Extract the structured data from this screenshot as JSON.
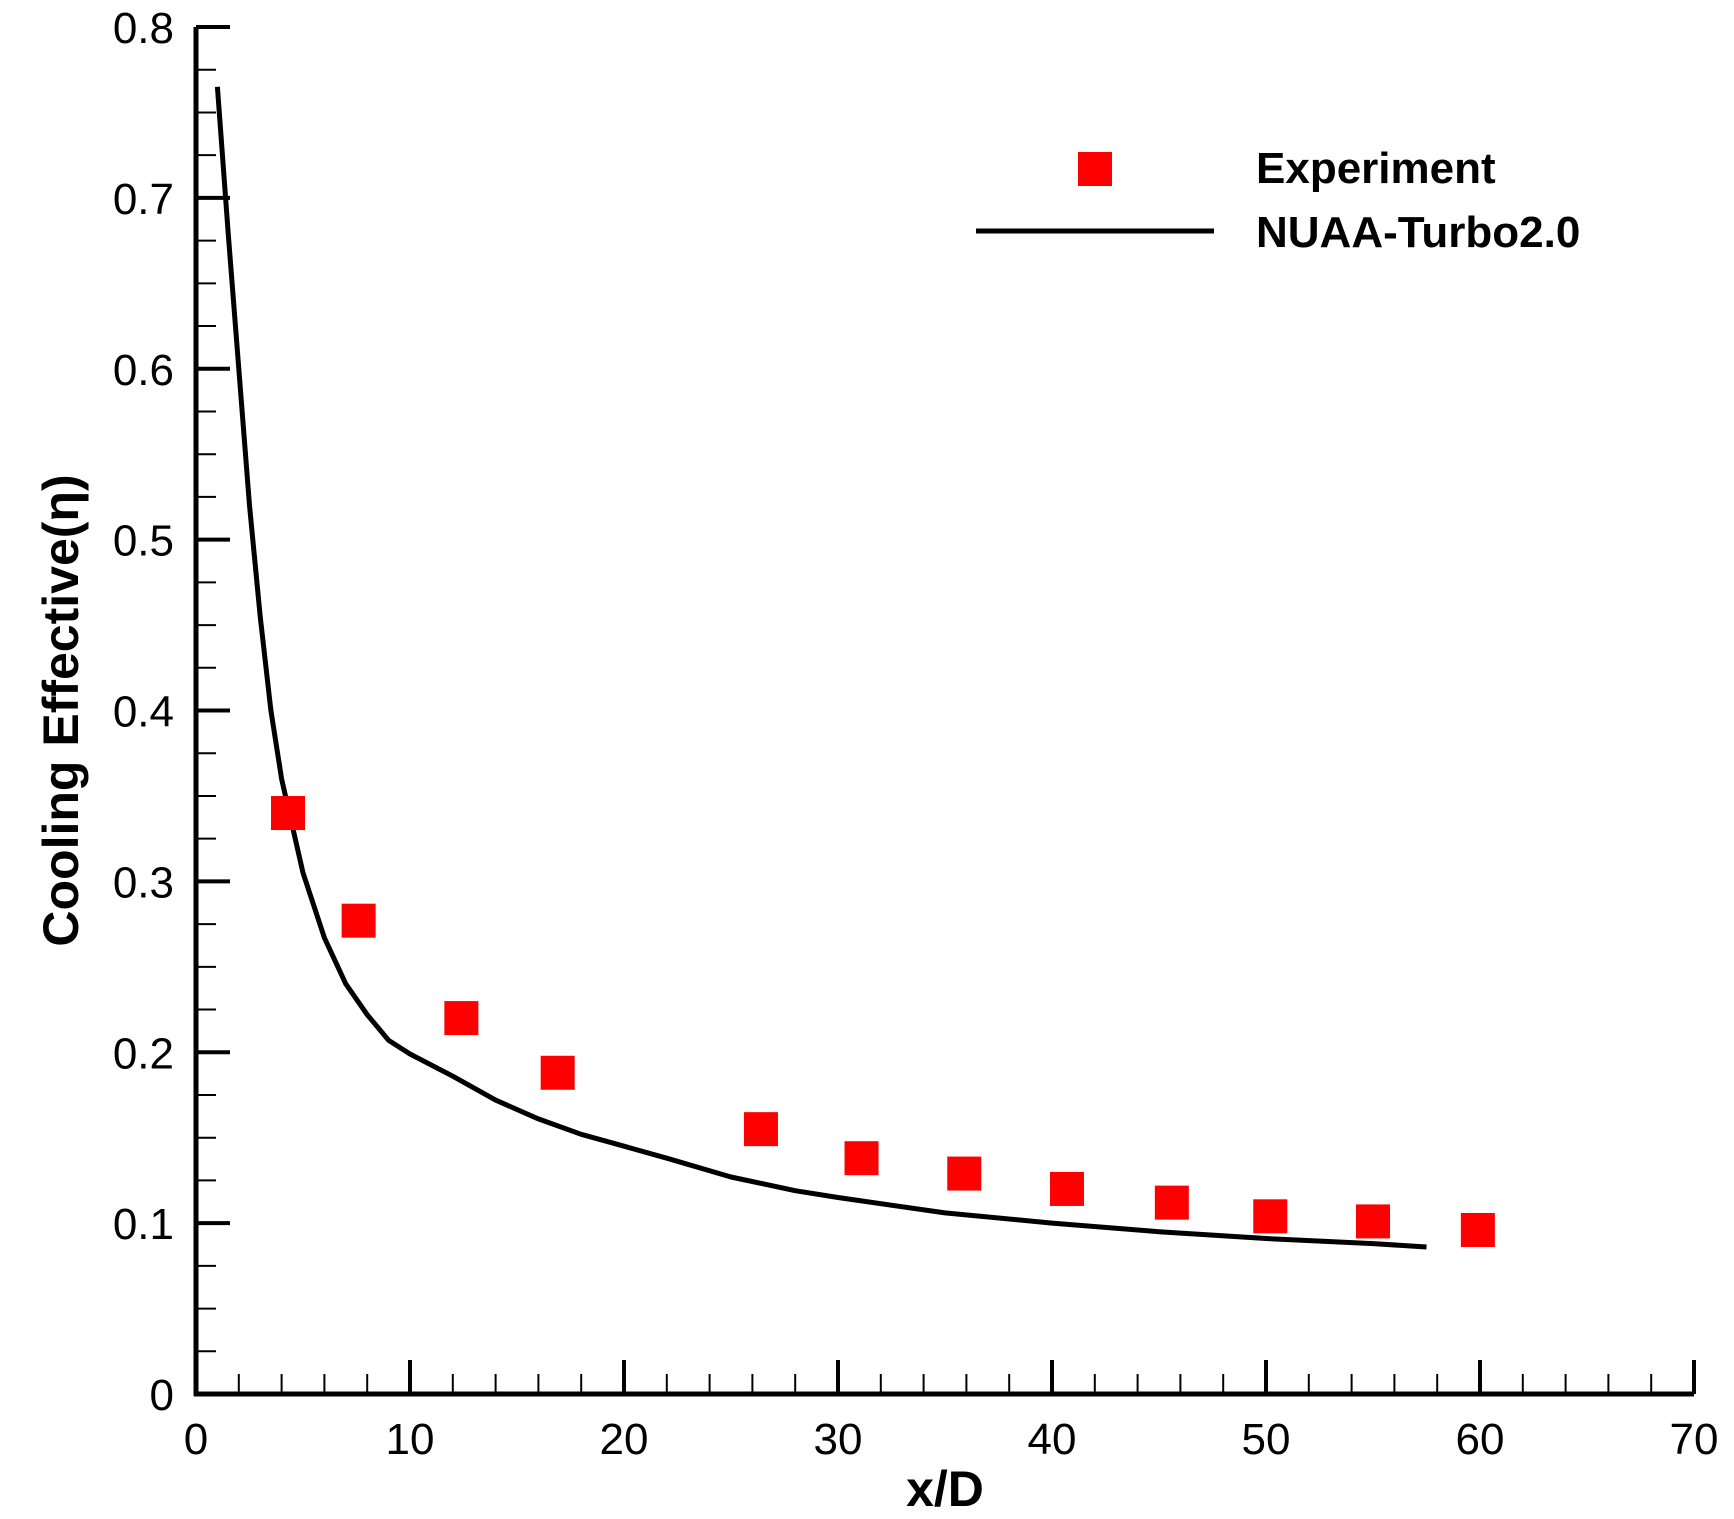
{
  "chart_data": {
    "type": "scatter",
    "xlabel": "x/D",
    "ylabel": "Cooling Effective(η)",
    "xlim": [
      0,
      70
    ],
    "ylim": [
      0,
      0.8
    ],
    "x_ticks": [
      0,
      10,
      20,
      30,
      40,
      50,
      60,
      70
    ],
    "y_ticks": [
      0,
      0.1,
      0.2,
      0.3,
      0.4,
      0.5,
      0.6,
      0.7,
      0.8
    ],
    "x_tick_labels": [
      "0",
      "10",
      "20",
      "30",
      "40",
      "50",
      "60",
      "70"
    ],
    "y_tick_labels": [
      "0",
      "0.1",
      "0.2",
      "0.3",
      "0.4",
      "0.5",
      "0.6",
      "0.7",
      "0.8"
    ],
    "grid": false,
    "legend_position": "top-right",
    "series": [
      {
        "name": "Experiment",
        "kind": "scatter",
        "marker": "square",
        "color": "#ff0000",
        "x": [
          4.3,
          7.6,
          12.4,
          16.9,
          26.4,
          31.1,
          35.9,
          40.7,
          45.6,
          50.2,
          55.0,
          59.9
        ],
        "y": [
          0.34,
          0.277,
          0.22,
          0.188,
          0.155,
          0.138,
          0.129,
          0.12,
          0.112,
          0.104,
          0.101,
          0.096
        ]
      },
      {
        "name": "NUAA-Turbo2.0",
        "kind": "line",
        "color": "#000000",
        "x": [
          1.0,
          1.5,
          2.0,
          2.5,
          3.0,
          3.5,
          4.0,
          5.0,
          6.0,
          7.0,
          8.0,
          9.0,
          10.0,
          12.0,
          14.0,
          16.0,
          18.0,
          20.0,
          22.0,
          25.0,
          28.0,
          30.0,
          35.0,
          40.0,
          45.0,
          50.0,
          55.0,
          57.5
        ],
        "y": [
          0.765,
          0.68,
          0.6,
          0.52,
          0.455,
          0.4,
          0.36,
          0.305,
          0.267,
          0.24,
          0.222,
          0.207,
          0.199,
          0.186,
          0.172,
          0.161,
          0.152,
          0.145,
          0.138,
          0.127,
          0.119,
          0.115,
          0.106,
          0.1,
          0.095,
          0.091,
          0.088,
          0.086
        ]
      }
    ]
  }
}
